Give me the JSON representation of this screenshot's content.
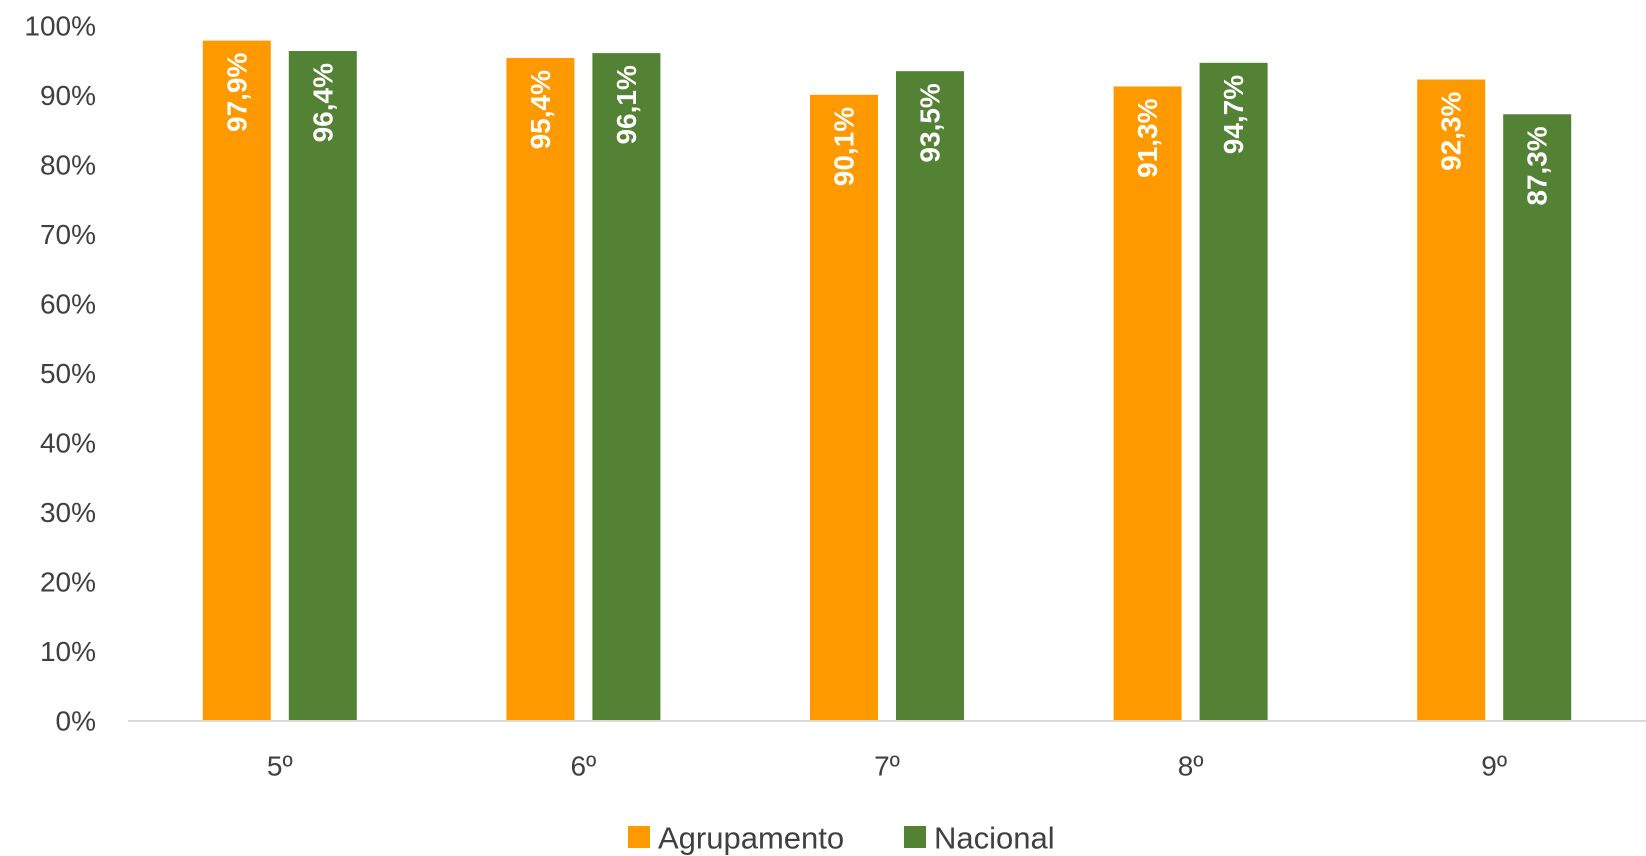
{
  "chart_data": {
    "type": "bar",
    "categories": [
      "5º",
      "6º",
      "7º",
      "8º",
      "9º"
    ],
    "series": [
      {
        "name": "Agrupamento",
        "color": "#FF9900",
        "values": [
          97.9,
          95.4,
          90.1,
          91.3,
          92.3
        ],
        "labels": [
          "97,9%",
          "95,4%",
          "90,1%",
          "91,3%",
          "92,3%"
        ]
      },
      {
        "name": "Nacional",
        "color": "#548235",
        "values": [
          96.4,
          96.1,
          93.5,
          94.7,
          87.3
        ],
        "labels": [
          "96,4%",
          "96,1%",
          "93,5%",
          "94,7%",
          "87,3%"
        ]
      }
    ],
    "ylim": [
      0,
      100
    ],
    "yticks": [
      "0%",
      "10%",
      "20%",
      "30%",
      "40%",
      "50%",
      "60%",
      "70%",
      "80%",
      "90%",
      "100%"
    ],
    "title": "",
    "xlabel": "",
    "ylabel": "",
    "legend_position": "bottom",
    "grid": false
  }
}
